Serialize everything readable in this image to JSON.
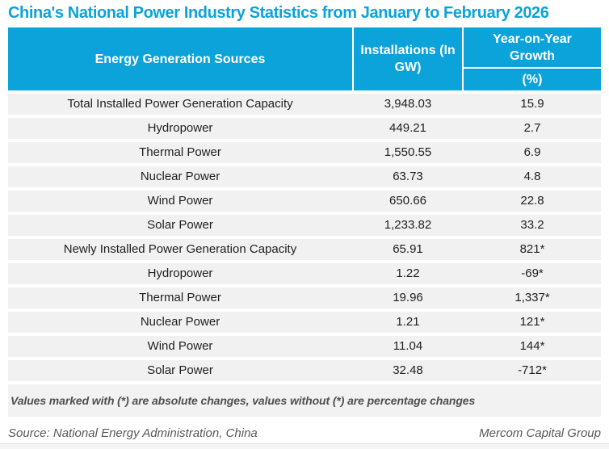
{
  "colors": {
    "accent": "#0CA2DA",
    "row_bg": "#F1F1F1",
    "note_bg": "#F2F2F2",
    "text": "#1F1F1F",
    "muted_text": "#595959",
    "header_text": "#FFFFFF"
  },
  "title": "China's National Power Industry Statistics from January to February 2026",
  "table": {
    "headers": {
      "sources": "Energy Generation Sources",
      "installations": "Installations (In GW)",
      "growth": "Year-on-Year Growth",
      "growth_unit": "(%)"
    },
    "rows": [
      {
        "label": "Total Installed Power Generation Capacity",
        "installations": "3,948.03",
        "growth": "15.9"
      },
      {
        "label": "Hydropower",
        "installations": "449.21",
        "growth": "2.7"
      },
      {
        "label": "Thermal Power",
        "installations": "1,550.55",
        "growth": "6.9"
      },
      {
        "label": "Nuclear Power",
        "installations": "63.73",
        "growth": "4.8"
      },
      {
        "label": "Wind Power",
        "installations": "650.66",
        "growth": "22.8"
      },
      {
        "label": "Solar Power",
        "installations": "1,233.82",
        "growth": "33.2"
      },
      {
        "label": "Newly Installed Power Generation Capacity",
        "installations": "65.91",
        "growth": "821*"
      },
      {
        "label": "Hydropower",
        "installations": "1.22",
        "growth": "-69*"
      },
      {
        "label": "Thermal Power",
        "installations": "19.96",
        "growth": "1,337*"
      },
      {
        "label": "Nuclear Power",
        "installations": "1.21",
        "growth": "121*"
      },
      {
        "label": "Wind Power",
        "installations": "11.04",
        "growth": "144*"
      },
      {
        "label": "Solar Power",
        "installations": "32.48",
        "growth": "-712*"
      }
    ]
  },
  "footnote": "Values marked with (*) are absolute changes, values without (*) are percentage changes",
  "footer": {
    "source": "Source: National Energy Administration, China",
    "attribution": "Mercom Capital Group"
  },
  "chart_data": {
    "type": "table",
    "title": "China's National Power Industry Statistics from January to February 2026",
    "columns": [
      "Energy Generation Sources",
      "Installations (In GW)",
      "Year-on-Year Growth (%)"
    ],
    "rows": [
      [
        "Total Installed Power Generation Capacity",
        3948.03,
        "15.9"
      ],
      [
        "Hydropower",
        449.21,
        "2.7"
      ],
      [
        "Thermal Power",
        1550.55,
        "6.9"
      ],
      [
        "Nuclear Power",
        63.73,
        "4.8"
      ],
      [
        "Wind Power",
        650.66,
        "22.8"
      ],
      [
        "Solar Power",
        1233.82,
        "33.2"
      ],
      [
        "Newly Installed Power Generation Capacity",
        65.91,
        "821*"
      ],
      [
        "Hydropower",
        1.22,
        "-69*"
      ],
      [
        "Thermal Power",
        19.96,
        "1,337*"
      ],
      [
        "Nuclear Power",
        1.21,
        "121*"
      ],
      [
        "Wind Power",
        11.04,
        "144*"
      ],
      [
        "Solar Power",
        32.48,
        "-712*"
      ]
    ],
    "note": "Values marked with (*) are absolute changes, values without (*) are percentage changes",
    "source": "National Energy Administration, China",
    "attribution": "Mercom Capital Group"
  }
}
